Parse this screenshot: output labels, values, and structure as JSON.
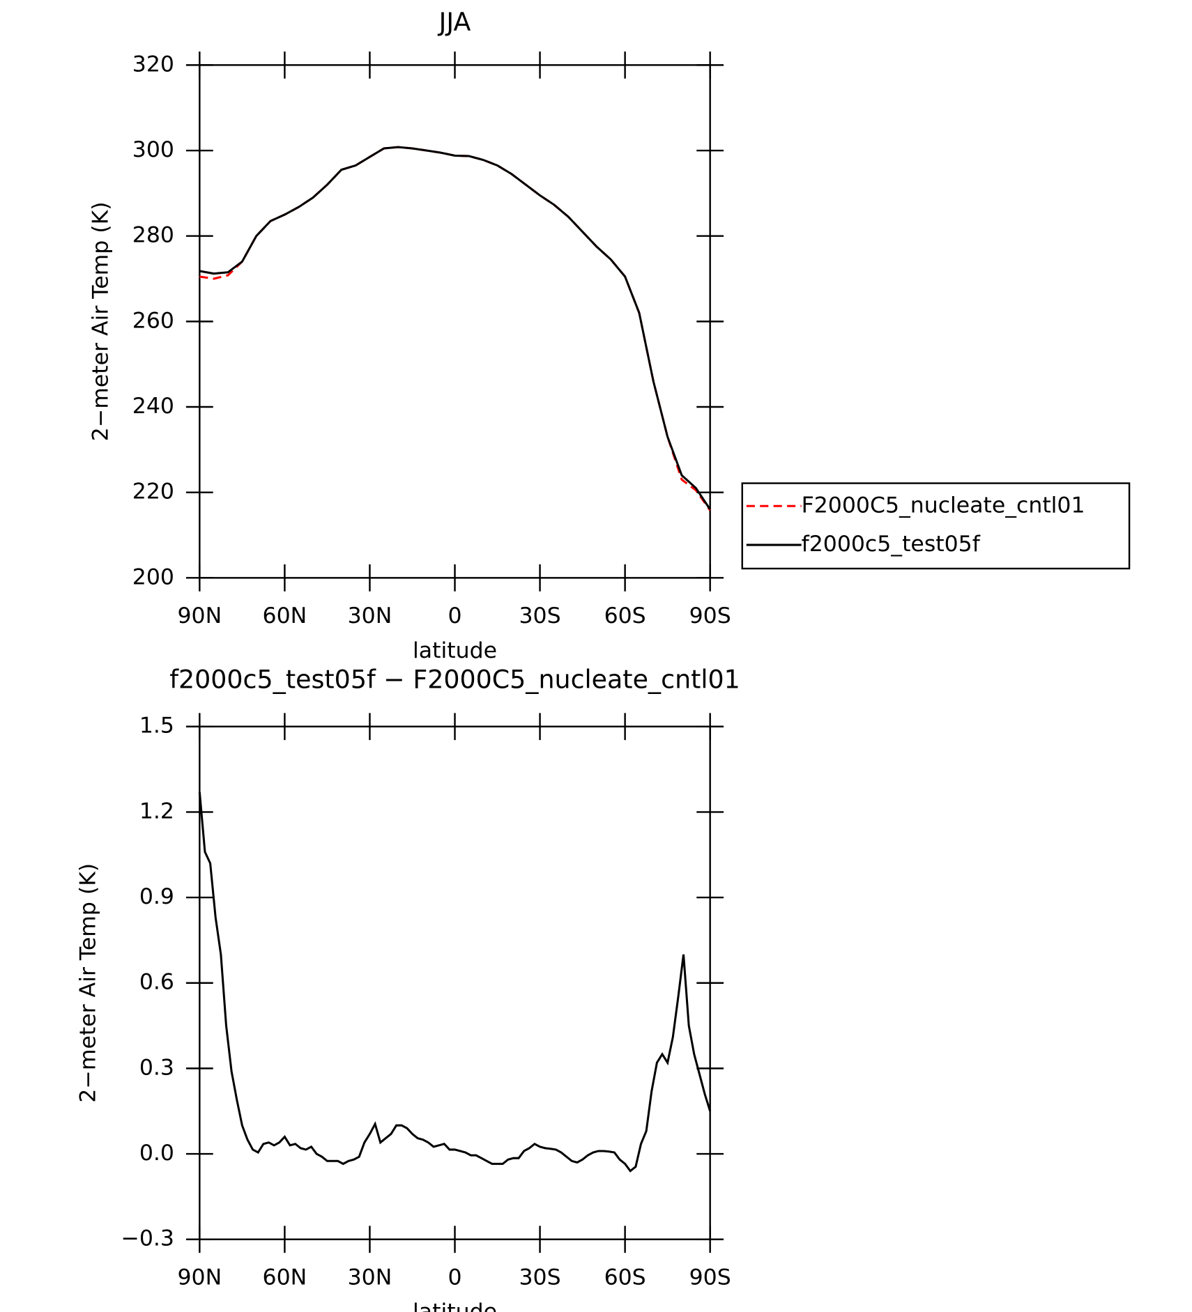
{
  "chart_data": [
    {
      "type": "line",
      "title": "JJA",
      "xlabel": "latitude",
      "ylabel": "2−meter Air Temp (K)",
      "x": [
        90,
        85,
        80,
        75,
        70,
        65,
        60,
        55,
        50,
        45,
        40,
        35,
        30,
        25,
        20,
        15,
        10,
        5,
        0,
        -5,
        -10,
        -15,
        -20,
        -25,
        -30,
        -35,
        -40,
        -45,
        -50,
        -55,
        -60,
        -65,
        -70,
        -75,
        -80,
        -85,
        -90
      ],
      "series": [
        {
          "name": "F2000C5_nucleate_cntl01",
          "color": "#ff0000",
          "style": "dashed",
          "values": [
            270.5,
            270,
            270.8,
            274,
            280,
            283.5,
            285,
            286.8,
            289,
            292,
            295.5,
            296.5,
            298.5,
            300.5,
            300.8,
            300.5,
            300,
            299.5,
            298.8,
            298.7,
            297.8,
            296.5,
            294.5,
            292,
            289.5,
            287.3,
            284.5,
            281,
            277.5,
            274.5,
            270.5,
            262,
            246,
            233,
            223,
            220.5,
            215.8
          ]
        },
        {
          "name": "f2000c5_test05f",
          "color": "#000000",
          "style": "solid",
          "values": [
            271.8,
            271.2,
            271.5,
            274,
            280,
            283.5,
            285,
            286.8,
            289,
            292,
            295.5,
            296.5,
            298.5,
            300.5,
            300.8,
            300.5,
            300,
            299.5,
            298.8,
            298.7,
            297.8,
            296.5,
            294.5,
            292,
            289.5,
            287.3,
            284.5,
            281,
            277.5,
            274.5,
            270.5,
            262,
            246,
            233,
            224,
            221,
            216
          ]
        }
      ],
      "xlim": [
        90,
        -90
      ],
      "xticks": [
        {
          "value": 90,
          "label": "90N"
        },
        {
          "value": 60,
          "label": "60N"
        },
        {
          "value": 30,
          "label": "30N"
        },
        0,
        {
          "value": -30,
          "label": "30S"
        },
        {
          "value": -60,
          "label": "60S"
        },
        {
          "value": -90,
          "label": "90S"
        }
      ],
      "ylim": [
        200,
        320
      ],
      "yticks": [
        200,
        220,
        240,
        260,
        280,
        300,
        320
      ],
      "legend": "right"
    },
    {
      "type": "line",
      "title": "f2000c5_test05f − F2000C5_nucleate_cntl01",
      "xlabel": "latitude",
      "ylabel": "2−meter Air Temp (K)",
      "x": [
        90,
        88.125,
        86.25,
        84.375,
        82.5,
        80.625,
        78.75,
        76.875,
        75,
        73.125,
        71.25,
        69.375,
        67.5,
        65.625,
        63.75,
        61.875,
        60,
        58.125,
        56.25,
        54.375,
        52.5,
        50.625,
        48.75,
        46.875,
        45,
        43.125,
        41.25,
        39.375,
        37.5,
        35.625,
        33.75,
        31.875,
        30,
        28.125,
        26.25,
        24.375,
        22.5,
        20.625,
        18.75,
        16.875,
        15,
        13.125,
        11.25,
        9.375,
        7.5,
        5.625,
        3.75,
        1.875,
        0,
        -1.875,
        -3.75,
        -5.625,
        -7.5,
        -9.375,
        -11.25,
        -13.125,
        -15,
        -16.875,
        -18.75,
        -20.625,
        -22.5,
        -24.375,
        -26.25,
        -28.125,
        -30,
        -31.875,
        -33.75,
        -35.625,
        -37.5,
        -39.375,
        -41.25,
        -43.125,
        -45,
        -46.875,
        -48.75,
        -50.625,
        -52.5,
        -54.375,
        -56.25,
        -58.125,
        -60,
        -61.875,
        -63.75,
        -65.625,
        -67.5,
        -69.375,
        -71.25,
        -73.125,
        -75,
        -76.875,
        -78.75,
        -80.625,
        -82.5,
        -84.375,
        -86.25,
        -88.125,
        -90
      ],
      "values": [
        1.27,
        1.06,
        1.02,
        0.83,
        0.7,
        0.45,
        0.29,
        0.19,
        0.1,
        0.05,
        0.015,
        0.005,
        0.035,
        0.04,
        0.03,
        0.04,
        0.06,
        0.03,
        0.035,
        0.02,
        0.015,
        0.025,
        0,
        -0.01,
        -0.025,
        -0.025,
        -0.025,
        -0.035,
        -0.025,
        -0.02,
        -0.01,
        0.04,
        0.07,
        0.105,
        0.04,
        0.055,
        0.07,
        0.1,
        0.1,
        0.09,
        0.07,
        0.055,
        0.05,
        0.04,
        0.025,
        0.03,
        0.035,
        0.015,
        0.015,
        0.01,
        0.005,
        -0.005,
        -0.005,
        -0.015,
        -0.025,
        -0.035,
        -0.035,
        -0.035,
        -0.02,
        -0.015,
        -0.015,
        0.01,
        0.02,
        0.035,
        0.025,
        0.02,
        0.018,
        0.015,
        0.005,
        -0.01,
        -0.025,
        -0.03,
        -0.02,
        -0.005,
        0.005,
        0.01,
        0.01,
        0.008,
        0.005,
        -0.02,
        -0.035,
        -0.06,
        -0.045,
        0.035,
        0.08,
        0.22,
        0.32,
        0.35,
        0.32,
        0.41,
        0.55,
        0.7,
        0.45,
        0.35,
        0.28,
        0.21,
        0.15
      ],
      "color": "#000000",
      "xlim": [
        90,
        -90
      ],
      "xticks": [
        {
          "value": 90,
          "label": "90N"
        },
        {
          "value": 60,
          "label": "60N"
        },
        {
          "value": 30,
          "label": "30N"
        },
        0,
        {
          "value": -30,
          "label": "30S"
        },
        {
          "value": -60,
          "label": "60S"
        },
        {
          "value": -90,
          "label": "90S"
        }
      ],
      "ylim": [
        -0.3,
        1.5
      ],
      "yticks": [
        {
          "value": -0.3,
          "label": "−0.3"
        },
        {
          "value": 0,
          "label": "0.0"
        },
        0.3,
        0.6,
        0.9,
        1.2,
        1.5
      ]
    }
  ]
}
